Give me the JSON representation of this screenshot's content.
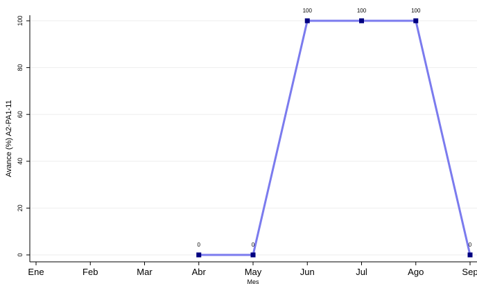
{
  "chart_data": {
    "type": "line",
    "categories": [
      "Ene",
      "Feb",
      "Mar",
      "Abr",
      "May",
      "Jun",
      "Jul",
      "Ago",
      "Sep"
    ],
    "series": [
      {
        "values": [
          null,
          null,
          null,
          0,
          0,
          100,
          100,
          100,
          0
        ],
        "data_labels": [
          "",
          "",
          "",
          "0",
          "0",
          "100",
          "100",
          "100",
          "0"
        ],
        "line_color": "#7b7bee",
        "marker_color": "#000080"
      }
    ],
    "xlabel": "Mes",
    "ylabel": "Avance (%) A2-PA1-11",
    "y_ticks": [
      "0",
      "20",
      "40",
      "60",
      "80",
      "100"
    ],
    "ylim": [
      0,
      100
    ],
    "grid": true,
    "background_color": "#ffffff"
  }
}
